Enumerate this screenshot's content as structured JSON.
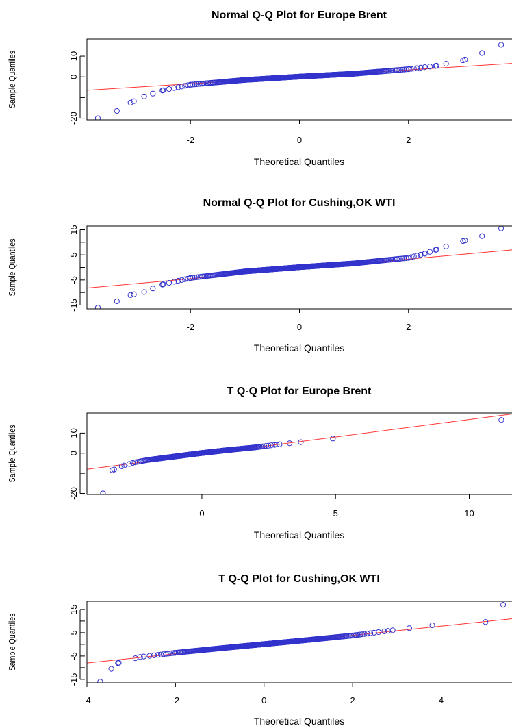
{
  "colors": {
    "points": "#3333cc",
    "reference_line": "#ff3333",
    "axes": "#000000"
  },
  "chart_data": [
    {
      "type": "scatter",
      "title": "Normal Q-Q Plot for Europe Brent",
      "xlabel": "Theoretical Quantiles",
      "ylabel": "Sample Quantiles",
      "xticks": [
        -2,
        0,
        2
      ],
      "yticks": [
        -20,
        0,
        10
      ],
      "xlim": [
        -3.9,
        3.9
      ],
      "ylim": [
        -20.8,
        18.3
      ],
      "tail_anchors": [
        [
          -3.7,
          -20
        ],
        [
          -3.35,
          -16.5
        ],
        [
          -3.1,
          -12.5
        ],
        [
          -2.85,
          -9.5
        ],
        [
          -2.5,
          -6.5
        ],
        [
          -2.0,
          -3.8
        ],
        [
          -1.0,
          -1.5
        ],
        [
          0.0,
          0.1
        ],
        [
          1.0,
          1.5
        ],
        [
          2.0,
          3.7
        ],
        [
          2.5,
          5.3
        ],
        [
          3.0,
          8.0
        ],
        [
          3.35,
          11.5
        ],
        [
          3.7,
          15.5
        ]
      ],
      "reference_line": [
        [
          -3.9,
          -6.5
        ],
        [
          3.9,
          6.5
        ]
      ]
    },
    {
      "type": "scatter",
      "title": "Normal Q-Q Plot for Cushing,OK WTI",
      "xlabel": "Theoretical Quantiles",
      "ylabel": "Sample Quantiles",
      "xticks": [
        -2,
        0,
        2
      ],
      "yticks": [
        -15,
        -5,
        5,
        15
      ],
      "xlim": [
        -3.9,
        3.9
      ],
      "ylim": [
        -16.5,
        16.5
      ],
      "tail_anchors": [
        [
          -3.7,
          -16
        ],
        [
          -3.35,
          -13.5
        ],
        [
          -3.1,
          -11
        ],
        [
          -2.85,
          -9.8
        ],
        [
          -2.5,
          -6.7
        ],
        [
          -2.0,
          -4.2
        ],
        [
          -1.0,
          -1.6
        ],
        [
          0.0,
          0.1
        ],
        [
          1.0,
          1.6
        ],
        [
          2.0,
          3.8
        ],
        [
          2.3,
          5.5
        ],
        [
          2.5,
          7.0
        ],
        [
          3.0,
          10.5
        ],
        [
          3.35,
          12.5
        ],
        [
          3.7,
          15.5
        ]
      ],
      "reference_line": [
        [
          -3.9,
          -8.2
        ],
        [
          3.9,
          7.0
        ]
      ]
    },
    {
      "type": "scatter",
      "title": "T Q-Q Plot for Europe Brent",
      "xlabel": "Theoretical Quantiles",
      "ylabel": "Sample Quantiles",
      "xticks": [
        0,
        5,
        10
      ],
      "yticks": [
        -20,
        0,
        10
      ],
      "xlim": [
        -4.3,
        11.6
      ],
      "ylim": [
        -20.5,
        20.0
      ],
      "tail_anchors": [
        [
          -3.7,
          -20
        ],
        [
          -3.35,
          -8.5
        ],
        [
          -3.0,
          -6.5
        ],
        [
          -2.5,
          -4.5
        ],
        [
          -2.0,
          -3.3
        ],
        [
          -1.0,
          -1.6
        ],
        [
          0.0,
          0.1
        ],
        [
          1.0,
          1.6
        ],
        [
          2.0,
          2.9
        ],
        [
          2.8,
          4.3
        ],
        [
          3.7,
          5.5
        ],
        [
          4.9,
          7.3
        ],
        [
          11.2,
          16.5
        ]
      ],
      "reference_line": [
        [
          -4.3,
          -8.0
        ],
        [
          11.6,
          19.5
        ]
      ]
    },
    {
      "type": "scatter",
      "title": "T Q-Q Plot for Cushing,OK WTI",
      "xlabel": "Theoretical Quantiles",
      "ylabel": "Sample Quantiles",
      "xticks": [
        -4,
        -2,
        0,
        2,
        4
      ],
      "yticks": [
        -15,
        -5,
        5,
        15
      ],
      "xlim": [
        -4.0,
        5.6
      ],
      "ylim": [
        -16.5,
        18.5
      ],
      "tail_anchors": [
        [
          -3.7,
          -16
        ],
        [
          -3.45,
          -10.5
        ],
        [
          -3.3,
          -8.0
        ],
        [
          -2.8,
          -5.4
        ],
        [
          -2.0,
          -3.6
        ],
        [
          -1.0,
          -1.7
        ],
        [
          0.0,
          0.1
        ],
        [
          1.0,
          1.9
        ],
        [
          2.0,
          3.8
        ],
        [
          2.8,
          5.8
        ],
        [
          3.8,
          8.2
        ],
        [
          5.0,
          9.6
        ],
        [
          5.4,
          17.0
        ]
      ],
      "reference_line": [
        [
          -4.0,
          -8.0
        ],
        [
          5.6,
          11.0
        ]
      ]
    }
  ]
}
